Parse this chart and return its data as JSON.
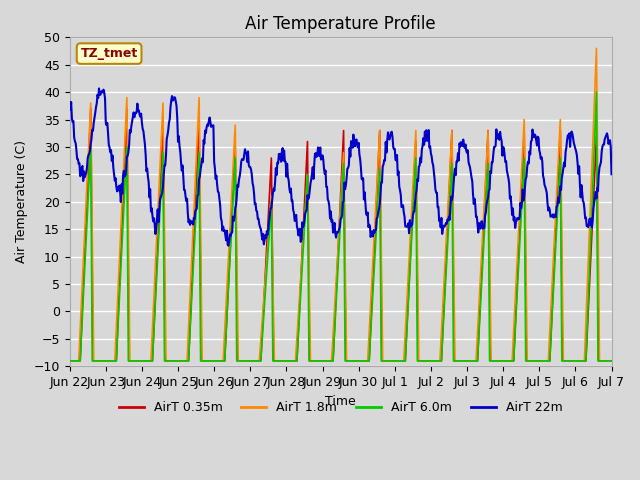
{
  "title": "Air Temperature Profile",
  "xlabel": "Time",
  "ylabel": "Air Temperature (C)",
  "ylim": [
    -10,
    50
  ],
  "bg_color": "#d8d8d8",
  "plot_bg_color": "#d8d8d8",
  "grid_color": "#ffffff",
  "annotation_text": "TZ_tmet",
  "annotation_color": "#8b0000",
  "annotation_bg": "#ffffcc",
  "annotation_border": "#b8860b",
  "colors": {
    "AirT 0.35m": "#cc0000",
    "AirT 1.8m": "#ff8800",
    "AirT 6.0m": "#00cc00",
    "AirT 22m": "#0000cc"
  },
  "legend_labels": [
    "AirT 0.35m",
    "AirT 1.8m",
    "AirT 6.0m",
    "AirT 22m"
  ],
  "tick_labels": [
    "Jun 22",
    "Jun 23",
    "Jun 24",
    "Jun 25",
    "Jun 26",
    "Jun 27",
    "Jun 28",
    "Jun 29",
    "Jun 30",
    "Jul 1",
    "Jul 2",
    "Jul 3",
    "Jul 4",
    "Jul 5",
    "Jul 6",
    "Jul 7"
  ]
}
